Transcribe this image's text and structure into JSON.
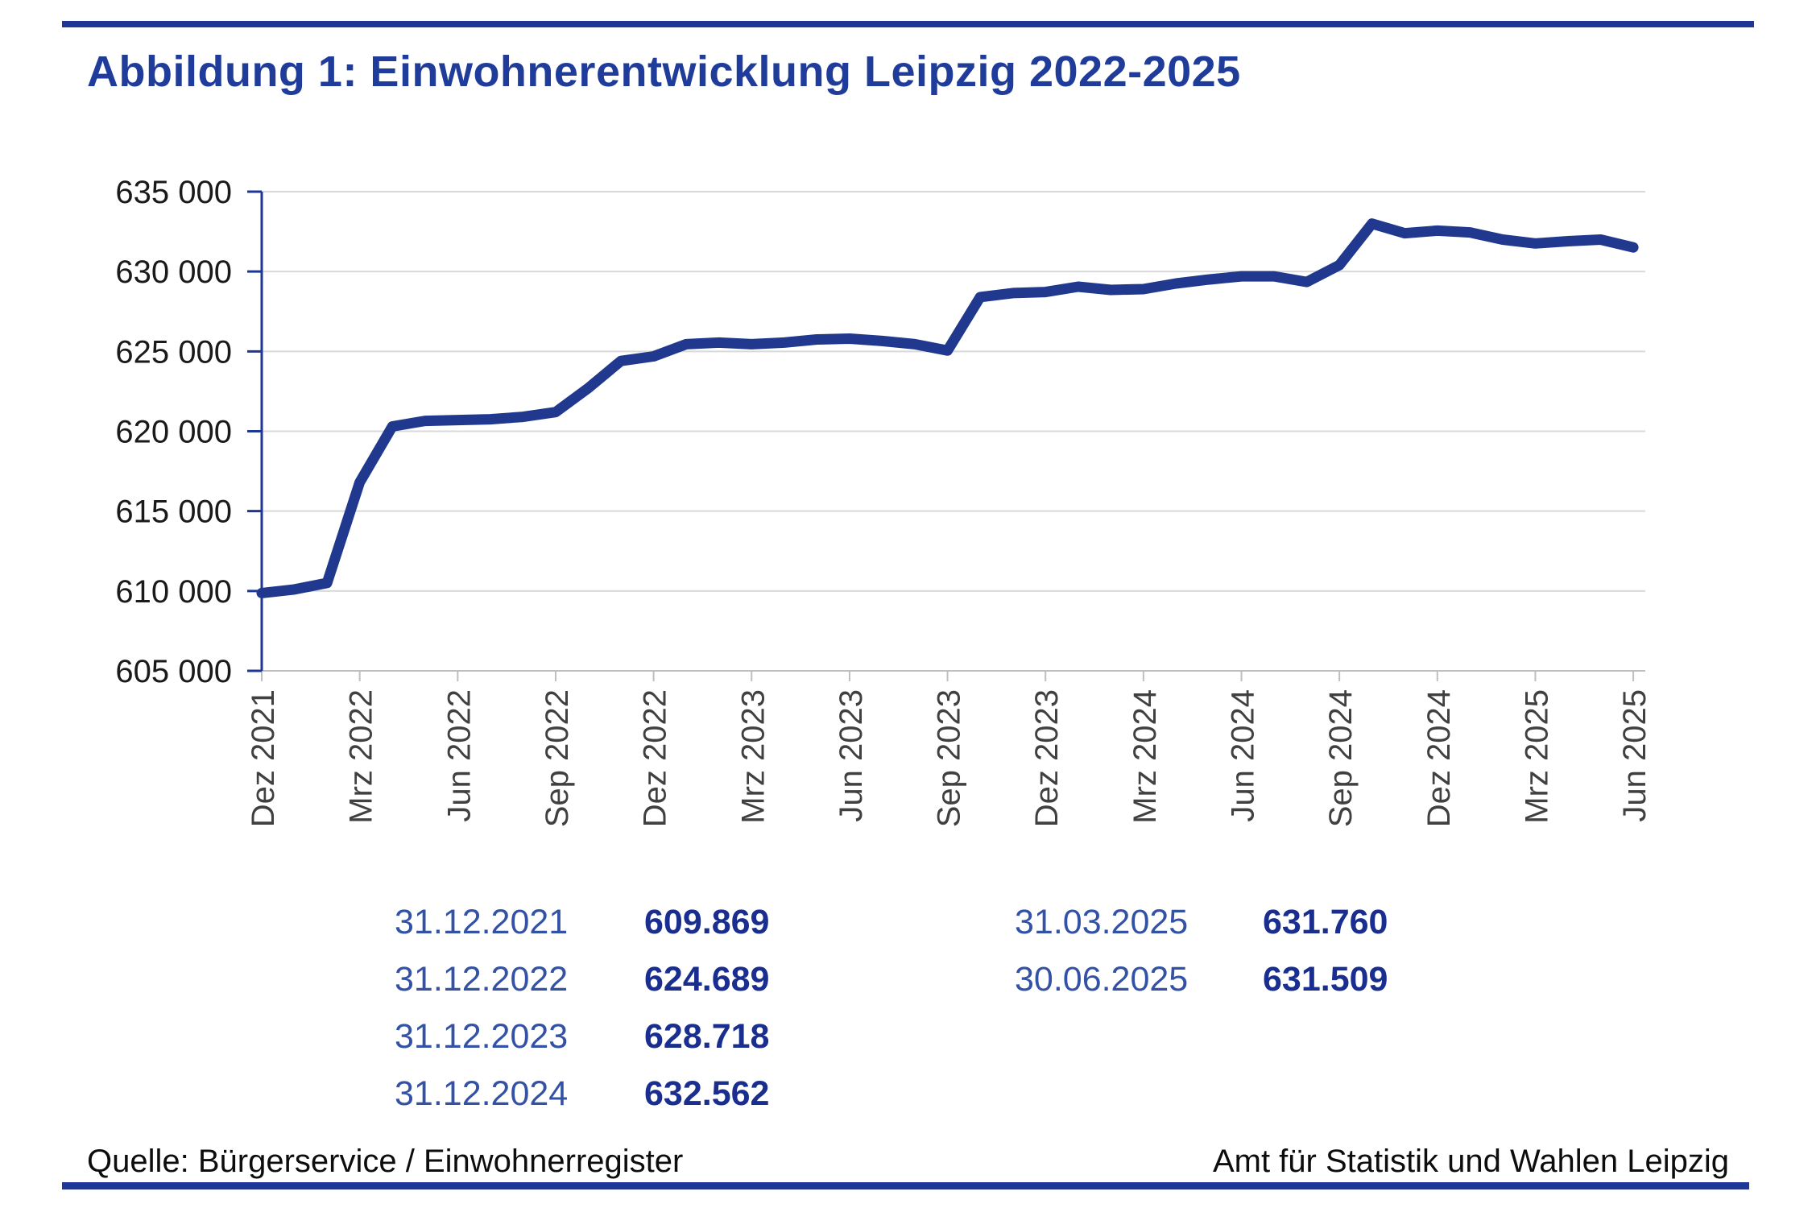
{
  "title": "Abbildung 1: Einwohnerentwicklung Leipzig 2022-2025",
  "colors": {
    "accent_navy": "#1e3796",
    "title_navy": "#1f3c9b",
    "line_navy": "#20398f",
    "gridline_gray": "#d9d9d9",
    "x_axis_gray": "#bfbfbf",
    "axis_label_dark": "#1a1a1a",
    "x_label_gray": "#404040",
    "annotation_date_blue": "#3352a5",
    "annotation_value_navy": "#1a2e8f"
  },
  "chart_data": {
    "type": "line",
    "title": "Einwohnerentwicklung Leipzig 2022-2025",
    "xlabel": "",
    "ylabel": "",
    "ylim": [
      605000,
      635000
    ],
    "grid": true,
    "legend": "none",
    "x": [
      "2021-12",
      "2022-01",
      "2022-02",
      "2022-03",
      "2022-04",
      "2022-05",
      "2022-06",
      "2022-07",
      "2022-08",
      "2022-09",
      "2022-10",
      "2022-11",
      "2022-12",
      "2023-01",
      "2023-02",
      "2023-03",
      "2023-04",
      "2023-05",
      "2023-06",
      "2023-07",
      "2023-08",
      "2023-09",
      "2023-10",
      "2023-11",
      "2023-12",
      "2024-01",
      "2024-02",
      "2024-03",
      "2024-04",
      "2024-05",
      "2024-06",
      "2024-07",
      "2024-08",
      "2024-09",
      "2024-10",
      "2024-11",
      "2024-12",
      "2025-01",
      "2025-02",
      "2025-03",
      "2025-04",
      "2025-05",
      "2025-06"
    ],
    "values": [
      609869,
      610100,
      610500,
      616800,
      620300,
      620650,
      620700,
      620750,
      620900,
      621200,
      622700,
      624400,
      624689,
      625450,
      625550,
      625450,
      625550,
      625750,
      625800,
      625650,
      625450,
      625050,
      628400,
      628650,
      628718,
      629050,
      628850,
      628900,
      629250,
      629500,
      629700,
      629700,
      629350,
      630400,
      633000,
      632400,
      632562,
      632450,
      632000,
      631760,
      631900,
      632000,
      631509
    ],
    "y_ticks": [
      {
        "v": 605000,
        "label": "605 000"
      },
      {
        "v": 610000,
        "label": "610 000"
      },
      {
        "v": 615000,
        "label": "615 000"
      },
      {
        "v": 620000,
        "label": "620 000"
      },
      {
        "v": 625000,
        "label": "625 000"
      },
      {
        "v": 630000,
        "label": "630 000"
      },
      {
        "v": 635000,
        "label": "635 000"
      }
    ],
    "x_ticks": [
      {
        "i": 0,
        "label": "Dez 2021"
      },
      {
        "i": 3,
        "label": "Mrz 2022"
      },
      {
        "i": 6,
        "label": "Jun 2022"
      },
      {
        "i": 9,
        "label": "Sep 2022"
      },
      {
        "i": 12,
        "label": "Dez 2022"
      },
      {
        "i": 15,
        "label": "Mrz 2023"
      },
      {
        "i": 18,
        "label": "Jun 2023"
      },
      {
        "i": 21,
        "label": "Sep 2023"
      },
      {
        "i": 24,
        "label": "Dez 2023"
      },
      {
        "i": 27,
        "label": "Mrz 2024"
      },
      {
        "i": 30,
        "label": "Jun 2024"
      },
      {
        "i": 33,
        "label": "Sep 2024"
      },
      {
        "i": 36,
        "label": "Dez 2024"
      },
      {
        "i": 39,
        "label": "Mrz 2025"
      },
      {
        "i": 42,
        "label": "Jun 2025"
      }
    ]
  },
  "table": {
    "left": [
      {
        "date": "31.12.2021",
        "value": "609.869"
      },
      {
        "date": "31.12.2022",
        "value": "624.689"
      },
      {
        "date": "31.12.2023",
        "value": "628.718"
      },
      {
        "date": "31.12.2024",
        "value": "632.562"
      }
    ],
    "right": [
      {
        "date": "31.03.2025",
        "value": "631.760"
      },
      {
        "date": "30.06.2025",
        "value": "631.509"
      }
    ]
  },
  "footer": {
    "left": "Quelle: Bürgerservice / Einwohnerregister",
    "right": "Amt für Statistik und Wahlen Leipzig"
  }
}
